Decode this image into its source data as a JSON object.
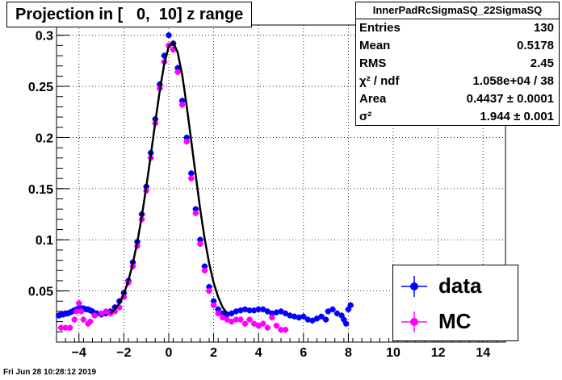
{
  "window": {
    "title": "Projection in [   0,  10] z range",
    "timestamp": "Fri Jun 28 10:28:12 2019"
  },
  "stats": {
    "name": "InnerPadRcSigmaSQ_22SigmaSQ",
    "rows": [
      {
        "label": "Entries",
        "value": "130"
      },
      {
        "label": "Mean",
        "value": "0.5178"
      },
      {
        "label": "RMS",
        "value": "2.45"
      },
      {
        "label": "χ² / ndf",
        "value": "1.058e+04 / 38"
      },
      {
        "label": "Area",
        "value": "0.4437 ± 0.0001"
      },
      {
        "label": "σ²",
        "value": "1.944 ± 0.001"
      }
    ]
  },
  "legend": {
    "items": [
      {
        "label": "data",
        "color": "#0000ff"
      },
      {
        "label": "MC",
        "color": "#ff00ff"
      }
    ]
  },
  "chart_data": {
    "type": "scatter",
    "title": "Projection in [   0,  10] z range",
    "xlabel": "",
    "ylabel": "",
    "xlim": [
      -5,
      15
    ],
    "ylim": [
      0,
      0.31
    ],
    "xticks": [
      -4,
      -2,
      0,
      2,
      4,
      6,
      8,
      10,
      12,
      14
    ],
    "xtick_labels": [
      "−4",
      "−2",
      "0",
      "2",
      "4",
      "6",
      "8",
      "10",
      "12",
      "14"
    ],
    "yticks": [
      0.05,
      0.1,
      0.15,
      0.2,
      0.25,
      0.3
    ],
    "ytick_labels": [
      "0.05",
      "0.1",
      "0.15",
      "0.2",
      "0.25",
      "0.3"
    ],
    "grid": true,
    "series": [
      {
        "name": "data",
        "color": "#0000ff",
        "points": [
          [
            -4.9,
            0.026
          ],
          [
            -4.8,
            0.027
          ],
          [
            -4.7,
            0.027
          ],
          [
            -4.6,
            0.028
          ],
          [
            -4.5,
            0.028
          ],
          [
            -4.4,
            0.029
          ],
          [
            -4.3,
            0.03
          ],
          [
            -4.2,
            0.031
          ],
          [
            -4.1,
            0.032
          ],
          [
            -4.0,
            0.033
          ],
          [
            -3.9,
            0.033
          ],
          [
            -3.8,
            0.033
          ],
          [
            -3.7,
            0.032
          ],
          [
            -3.6,
            0.032
          ],
          [
            -3.5,
            0.031
          ],
          [
            -3.4,
            0.03
          ],
          [
            -3.3,
            0.028
          ],
          [
            -3.2,
            0.028
          ],
          [
            -3.0,
            0.027
          ],
          [
            -2.8,
            0.028
          ],
          [
            -2.6,
            0.03
          ],
          [
            -2.4,
            0.034
          ],
          [
            -2.2,
            0.04
          ],
          [
            -2.0,
            0.048
          ],
          [
            -1.8,
            0.06
          ],
          [
            -1.6,
            0.078
          ],
          [
            -1.4,
            0.098
          ],
          [
            -1.2,
            0.125
          ],
          [
            -1.0,
            0.152
          ],
          [
            -0.8,
            0.185
          ],
          [
            -0.6,
            0.218
          ],
          [
            -0.4,
            0.252
          ],
          [
            -0.2,
            0.28
          ],
          [
            0.0,
            0.3
          ],
          [
            0.2,
            0.292
          ],
          [
            0.4,
            0.268
          ],
          [
            0.6,
            0.236
          ],
          [
            0.8,
            0.2
          ],
          [
            1.0,
            0.165
          ],
          [
            1.2,
            0.13
          ],
          [
            1.4,
            0.1
          ],
          [
            1.6,
            0.074
          ],
          [
            1.8,
            0.054
          ],
          [
            2.0,
            0.04
          ],
          [
            2.2,
            0.032
          ],
          [
            2.4,
            0.028
          ],
          [
            2.6,
            0.027
          ],
          [
            2.8,
            0.028
          ],
          [
            3.0,
            0.03
          ],
          [
            3.2,
            0.031
          ],
          [
            3.4,
            0.032
          ],
          [
            3.6,
            0.031
          ],
          [
            3.8,
            0.031
          ],
          [
            4.0,
            0.032
          ],
          [
            4.2,
            0.032
          ],
          [
            4.4,
            0.03
          ],
          [
            4.6,
            0.028
          ],
          [
            4.8,
            0.029
          ],
          [
            5.0,
            0.03
          ],
          [
            5.2,
            0.028
          ],
          [
            5.4,
            0.026
          ],
          [
            5.6,
            0.025
          ],
          [
            5.8,
            0.024
          ],
          [
            6.0,
            0.025
          ],
          [
            6.2,
            0.022
          ],
          [
            6.4,
            0.021
          ],
          [
            6.6,
            0.023
          ],
          [
            6.8,
            0.025
          ],
          [
            7.0,
            0.022
          ],
          [
            7.1,
            0.03
          ],
          [
            7.3,
            0.032
          ],
          [
            7.5,
            0.028
          ],
          [
            7.7,
            0.026
          ],
          [
            7.8,
            0.022
          ],
          [
            7.9,
            0.018
          ],
          [
            8.0,
            0.032
          ],
          [
            8.1,
            0.036
          ]
        ]
      },
      {
        "name": "MC",
        "color": "#ff00ff",
        "points": [
          [
            -4.8,
            0.014
          ],
          [
            -4.6,
            0.014
          ],
          [
            -4.4,
            0.014
          ],
          [
            -4.2,
            0.022
          ],
          [
            -4.1,
            0.03
          ],
          [
            -4.0,
            0.038
          ],
          [
            -3.9,
            0.03
          ],
          [
            -3.8,
            0.022
          ],
          [
            -3.6,
            0.018
          ],
          [
            -3.5,
            0.02
          ],
          [
            -3.3,
            0.026
          ],
          [
            -3.0,
            0.028
          ],
          [
            -2.8,
            0.03
          ],
          [
            -2.6,
            0.028
          ],
          [
            -2.4,
            0.03
          ],
          [
            -2.2,
            0.034
          ],
          [
            -2.0,
            0.044
          ],
          [
            -1.8,
            0.058
          ],
          [
            -1.6,
            0.074
          ],
          [
            -1.4,
            0.094
          ],
          [
            -1.2,
            0.12
          ],
          [
            -1.0,
            0.148
          ],
          [
            -0.8,
            0.18
          ],
          [
            -0.6,
            0.214
          ],
          [
            -0.4,
            0.248
          ],
          [
            -0.2,
            0.274
          ],
          [
            0.0,
            0.29
          ],
          [
            0.2,
            0.286
          ],
          [
            0.4,
            0.264
          ],
          [
            0.6,
            0.232
          ],
          [
            0.8,
            0.196
          ],
          [
            1.0,
            0.16
          ],
          [
            1.2,
            0.126
          ],
          [
            1.4,
            0.096
          ],
          [
            1.6,
            0.07
          ],
          [
            1.8,
            0.05
          ],
          [
            2.0,
            0.036
          ],
          [
            2.2,
            0.028
          ],
          [
            2.4,
            0.024
          ],
          [
            2.6,
            0.022
          ],
          [
            2.8,
            0.02
          ],
          [
            3.0,
            0.022
          ],
          [
            3.2,
            0.022
          ],
          [
            3.4,
            0.018
          ],
          [
            3.6,
            0.022
          ],
          [
            3.8,
            0.018
          ],
          [
            4.0,
            0.016
          ],
          [
            4.2,
            0.018
          ],
          [
            4.4,
            0.014
          ],
          [
            4.6,
            0.024
          ],
          [
            4.8,
            0.016
          ],
          [
            5.0,
            0.012
          ],
          [
            5.2,
            0.012
          ]
        ]
      },
      {
        "name": "",
        "color": "#000000",
        "kind": "fit-curve",
        "points": [
          [
            -2.6,
            0.028
          ],
          [
            -2.4,
            0.032
          ],
          [
            -2.2,
            0.038
          ],
          [
            -2.0,
            0.047
          ],
          [
            -1.8,
            0.06
          ],
          [
            -1.6,
            0.077
          ],
          [
            -1.4,
            0.098
          ],
          [
            -1.2,
            0.123
          ],
          [
            -1.0,
            0.152
          ],
          [
            -0.8,
            0.183
          ],
          [
            -0.6,
            0.215
          ],
          [
            -0.4,
            0.246
          ],
          [
            -0.2,
            0.272
          ],
          [
            0.0,
            0.289
          ],
          [
            0.2,
            0.293
          ],
          [
            0.4,
            0.283
          ],
          [
            0.6,
            0.261
          ],
          [
            0.8,
            0.231
          ],
          [
            1.0,
            0.197
          ],
          [
            1.2,
            0.163
          ],
          [
            1.4,
            0.13
          ],
          [
            1.6,
            0.101
          ],
          [
            1.8,
            0.077
          ],
          [
            2.0,
            0.058
          ],
          [
            2.2,
            0.044
          ],
          [
            2.4,
            0.034
          ],
          [
            2.6,
            0.028
          ]
        ]
      }
    ]
  }
}
